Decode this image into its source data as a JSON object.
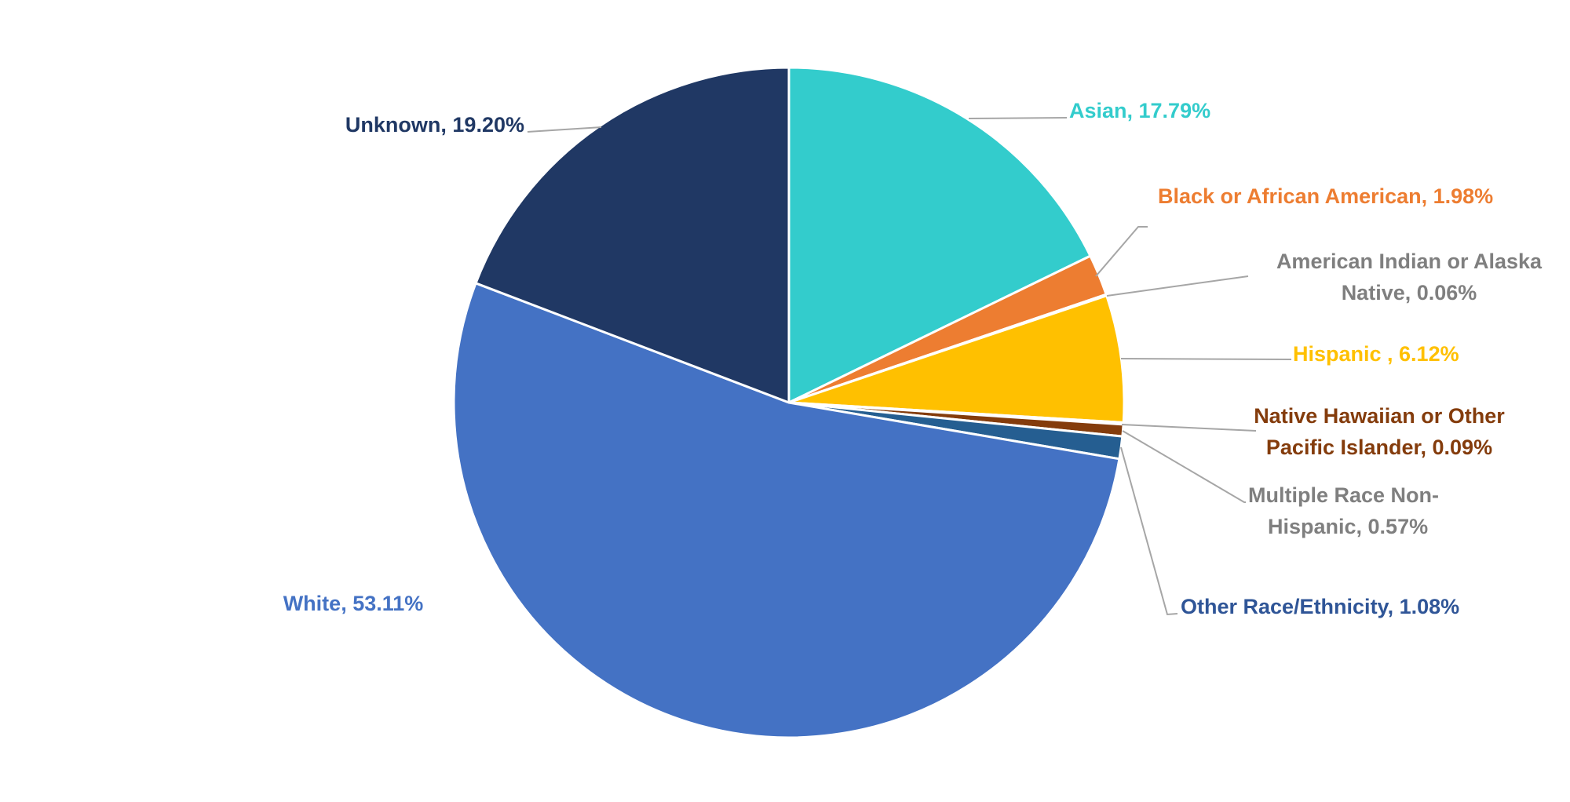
{
  "chart_data": {
    "type": "pie",
    "title": "",
    "start_angle_deg": 0,
    "direction": "clockwise",
    "slices": [
      {
        "label": "Asian, 17.79%",
        "category": "Asian",
        "value": 17.79,
        "color": "#33CCCC"
      },
      {
        "label": "Black or African American, 1.98%",
        "category": "Black or African American",
        "value": 1.98,
        "color": "#ED7D31"
      },
      {
        "label": "American Indian or Alaska Native, 0.06%",
        "category": "American Indian or Alaska Native",
        "value": 0.06,
        "color": "#A5A5A5",
        "label_color": "#7F7F7F"
      },
      {
        "label": "Hispanic , 6.12%",
        "category": "Hispanic",
        "value": 6.12,
        "color": "#FFC000"
      },
      {
        "label": "Native Hawaiian or Other Pacific Islander, 0.09%",
        "category": "Native Hawaiian or Other Pacific Islander",
        "value": 0.09,
        "color": "#843C0C"
      },
      {
        "label": "Multiple Race Non-Hispanic, 0.57%",
        "category": "Multiple Race Non-Hispanic",
        "value": 0.57,
        "color": "#843C0C",
        "label_color": "#7F7F7F"
      },
      {
        "label": "Other Race/Ethnicity, 1.08%",
        "category": "Other Race/Ethnicity",
        "value": 1.08,
        "color": "#255E91",
        "label_color": "#2F5597"
      },
      {
        "label": "White, 53.11%",
        "category": "White",
        "value": 53.11,
        "color": "#4472C4"
      },
      {
        "label": "Unknown, 19.20%",
        "category": "Unknown",
        "value": 19.2,
        "color": "#203864"
      }
    ]
  }
}
